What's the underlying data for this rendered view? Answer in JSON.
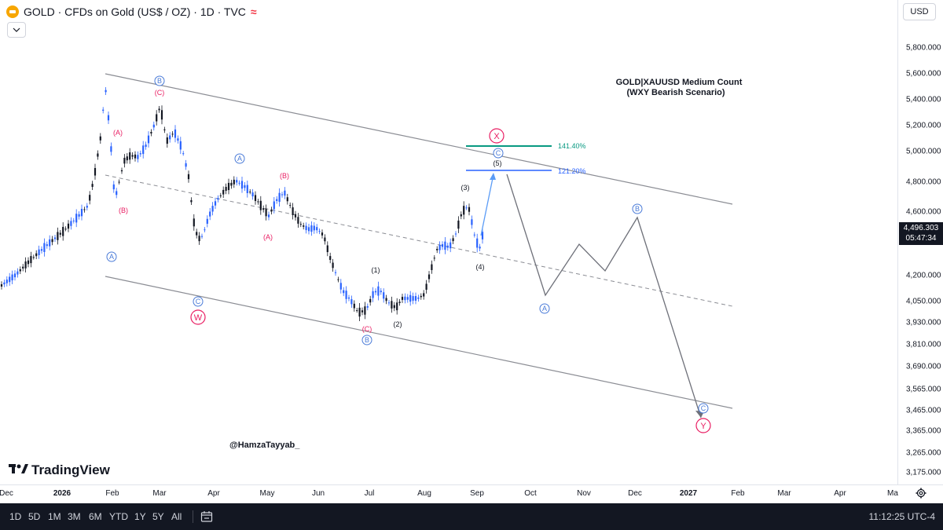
{
  "header": {
    "title": "GOLD · CFDs on Gold (US$ / OZ) · 1D · TVC",
    "wave_icon": "≈",
    "collapse_icon": "chevron-down-icon"
  },
  "currency": "USD",
  "price_axis": {
    "ticks": [
      "5,800.000",
      "5,600.000",
      "5,400.000",
      "5,200.000",
      "5,000.000",
      "4,800.000",
      "4,600.000",
      "4,200.000",
      "4,050.000",
      "3,930.000",
      "3,810.000",
      "3,690.000",
      "3,565.000",
      "3,465.000",
      "3,365.000",
      "3,265.000",
      "3,175.000"
    ],
    "current_price": "4,496.303",
    "countdown": "05:47:34"
  },
  "time_axis": {
    "labels": [
      {
        "text": "Dec",
        "bold": false
      },
      {
        "text": "2026",
        "bold": true
      },
      {
        "text": "Feb",
        "bold": false
      },
      {
        "text": "Mar",
        "bold": false
      },
      {
        "text": "Apr",
        "bold": false
      },
      {
        "text": "May",
        "bold": false
      },
      {
        "text": "Jun",
        "bold": false
      },
      {
        "text": "Jul",
        "bold": false
      },
      {
        "text": "Aug",
        "bold": false
      },
      {
        "text": "Sep",
        "bold": false
      },
      {
        "text": "Oct",
        "bold": false
      },
      {
        "text": "Nov",
        "bold": false
      },
      {
        "text": "Dec",
        "bold": false
      },
      {
        "text": "2027",
        "bold": true
      },
      {
        "text": "Feb",
        "bold": false
      },
      {
        "text": "Mar",
        "bold": false
      },
      {
        "text": "Apr",
        "bold": false
      },
      {
        "text": "Ma",
        "bold": false
      }
    ]
  },
  "chart": {
    "annotation_title": "GOLD|XAUUSD Medium Count",
    "annotation_subtitle": "(WXY Bearish Scenario)",
    "watermark": "@HamzaTayyab_",
    "logo_text": "TradingView",
    "fib_levels": [
      {
        "label": "141.40%",
        "color": "#089981"
      },
      {
        "label": "121.20%",
        "color": "#2962ff"
      }
    ],
    "wave_labels": [
      "A",
      "B",
      "C",
      "(A)",
      "(B)",
      "(C)",
      "(1)",
      "(2)",
      "(3)",
      "(4)",
      "(5)",
      "X",
      "W",
      "Y",
      "A",
      "B",
      "C"
    ],
    "colors": {
      "bull": "#2962ff",
      "bear": "#131722",
      "pink": "#e91e63",
      "blue": "#4a7bd8",
      "channel": "#8b8d94"
    }
  },
  "bottom_bar": {
    "periods": [
      "1D",
      "5D",
      "1M",
      "3M",
      "6M",
      "YTD",
      "1Y",
      "5Y",
      "All"
    ],
    "compare_icon": "calendar-range-icon",
    "time": "11:12:25 UTC-4"
  }
}
